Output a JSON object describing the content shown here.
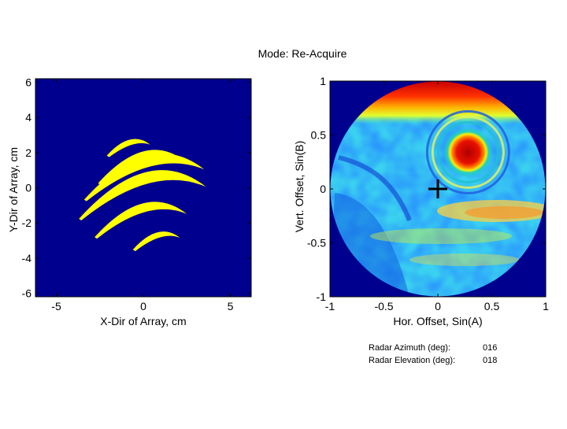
{
  "title": "Mode:  Re-Acquire",
  "chart_data": [
    {
      "type": "heatmap",
      "xlabel": "X-Dir of Array, cm",
      "ylabel": "Y-Dir of Array, cm",
      "xlim": [
        -6.2,
        6.2
      ],
      "ylim": [
        -6.2,
        6.2
      ],
      "xticks": [
        "-5",
        "0",
        "5"
      ],
      "yticks": [
        "6",
        "4",
        "2",
        "0",
        "-2",
        "-4",
        "-6"
      ],
      "background_color": "#00008f",
      "shape_color": "#ffff00",
      "arc_bands": [
        {
          "x_start": -2.1,
          "x_end": 0.4,
          "y_center": 2.4
        },
        {
          "x_start": -2.6,
          "x_end": 2.4,
          "y_center": 1.4
        },
        {
          "x_start": -3.4,
          "x_end": 3.5,
          "y_center": 0.9
        },
        {
          "x_start": -3.7,
          "x_end": 3.6,
          "y_center": -0.1
        },
        {
          "x_start": -2.8,
          "x_end": 2.5,
          "y_center": -1.6
        },
        {
          "x_start": -0.6,
          "x_end": 2.1,
          "y_center": -2.9
        }
      ]
    },
    {
      "type": "heatmap",
      "xlabel": "Hor. Offset, Sin(A)",
      "ylabel": "Vert. Offset, Sin(B)",
      "xlim": [
        -1,
        1
      ],
      "ylim": [
        -1,
        1
      ],
      "xticks": [
        "-1",
        "-0.5",
        "0",
        "0.5",
        "1"
      ],
      "yticks": [
        "1",
        "0.5",
        "0",
        "-0.5",
        "-1"
      ],
      "background_color": "#00008f",
      "peak": {
        "x": 0.28,
        "y": 0.34
      },
      "marker": {
        "x": 0.0,
        "y": 0.0,
        "symbol": "+"
      }
    }
  ],
  "radar": {
    "azimuth_label": "Radar Azimuth (deg):",
    "azimuth_value": "016",
    "elevation_label": "Radar Elevation (deg):",
    "elevation_value": "018"
  }
}
